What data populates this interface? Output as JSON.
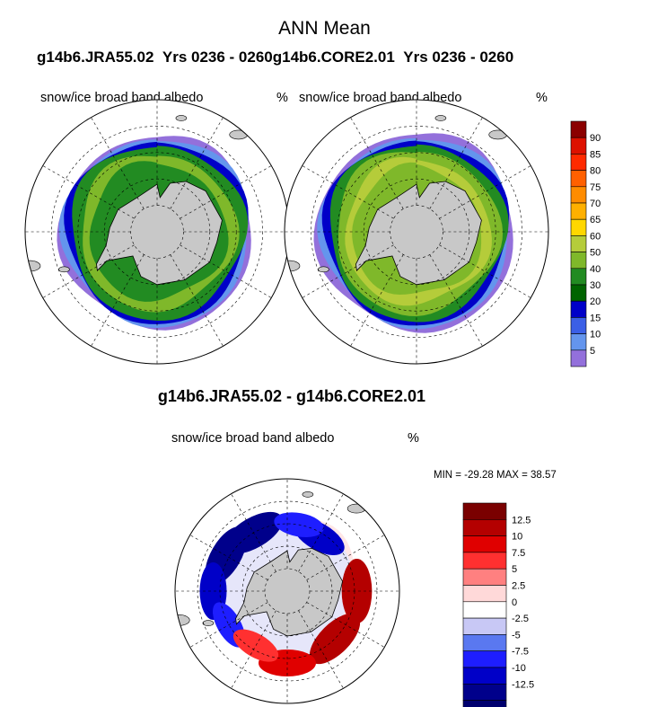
{
  "figure": {
    "title": "ANN Mean",
    "left_case": "g14b6.JRA55.02",
    "right_case": "g14b6.CORE2.01",
    "years_label": "Yrs 0236 - 0260",
    "diff_title": "g14b6.JRA55.02 - g14b6.CORE2.01",
    "variable": "snow/ice broad band albedo",
    "units": "%",
    "min_max_text": "MIN = -29.28 MAX =  38.57"
  },
  "colors": {
    "land": "#c8c8c8",
    "abs_scale": [
      "#ee77ee",
      "#9370db",
      "#6495ed",
      "#3b5fe6",
      "#0000c8",
      "#006400",
      "#228b22",
      "#7fb82a",
      "#b5cc3a",
      "#ffd700",
      "#ffb000",
      "#ff8c00",
      "#ff6000",
      "#ff2a00",
      "#dd1100",
      "#8b0000"
    ],
    "diff_scale": [
      "#00006e",
      "#00008b",
      "#0000c8",
      "#1e1eff",
      "#5a78f0",
      "#c8c8f5",
      "#ffffff",
      "#ffd9d9",
      "#ff8080",
      "#ff3030",
      "#e00000",
      "#b40000",
      "#7a0000"
    ]
  },
  "chart_data": [
    {
      "type": "heatmap",
      "name": "absolute_left",
      "title": "g14b6.JRA55.02  Yrs 0236 - 0260",
      "variable": "snow/ice broad band albedo",
      "units": "%",
      "projection": "south-polar-stereographic",
      "ice_rings": [
        {
          "value": 5,
          "lat": -53.5
        },
        {
          "value": 10,
          "lat": -54.5
        },
        {
          "value": 20,
          "lat": -55.5
        },
        {
          "value": 40,
          "lat": -57
        },
        {
          "value": 50,
          "lat": -60.5
        },
        {
          "value": 40,
          "lat": -64
        }
      ]
    },
    {
      "type": "heatmap",
      "name": "absolute_right",
      "title": "g14b6.CORE2.01  Yrs 0236 - 0260",
      "variable": "snow/ice broad band albedo",
      "units": "%",
      "projection": "south-polar-stereographic",
      "ice_rings": [
        {
          "value": 5,
          "lat": -52.5
        },
        {
          "value": 10,
          "lat": -54
        },
        {
          "value": 20,
          "lat": -55
        },
        {
          "value": 40,
          "lat": -56.5
        },
        {
          "value": 50,
          "lat": -59
        },
        {
          "value": 60,
          "lat": -62.5
        },
        {
          "value": 50,
          "lat": -65.5
        }
      ]
    },
    {
      "type": "heatmap",
      "name": "difference",
      "title": "g14b6.JRA55.02 - g14b6.CORE2.01",
      "variable": "snow/ice broad band albedo",
      "units": "%",
      "min": -29.28,
      "max": 38.57,
      "diff_blobs": [
        {
          "value": -12.5,
          "lon": -150,
          "lat": -60
        },
        {
          "value": -12.5,
          "lon": -120,
          "lat": -58.5
        },
        {
          "value": -10,
          "lon": -90,
          "lat": -57
        },
        {
          "value": -7.5,
          "lon": -60,
          "lat": -60
        },
        {
          "value": 12.5,
          "lon": 90,
          "lat": -59
        },
        {
          "value": 12.5,
          "lon": 45,
          "lat": -60
        },
        {
          "value": 10,
          "lon": 0,
          "lat": -58
        },
        {
          "value": -10,
          "lon": 150,
          "lat": -62
        },
        {
          "value": -7.5,
          "lon": 170,
          "lat": -60
        },
        {
          "value": 7.5,
          "lon": -30,
          "lat": -62
        }
      ]
    }
  ],
  "colorbars": {
    "absolute": {
      "labels": [
        "90",
        "85",
        "80",
        "75",
        "70",
        "65",
        "60",
        "50",
        "40",
        "30",
        "20",
        "15",
        "10",
        "5"
      ]
    },
    "difference": {
      "labels": [
        "12.5",
        "10",
        "7.5",
        "5",
        "2.5",
        "0",
        "-2.5",
        "-5",
        "-7.5",
        "-10",
        "-12.5"
      ]
    }
  }
}
